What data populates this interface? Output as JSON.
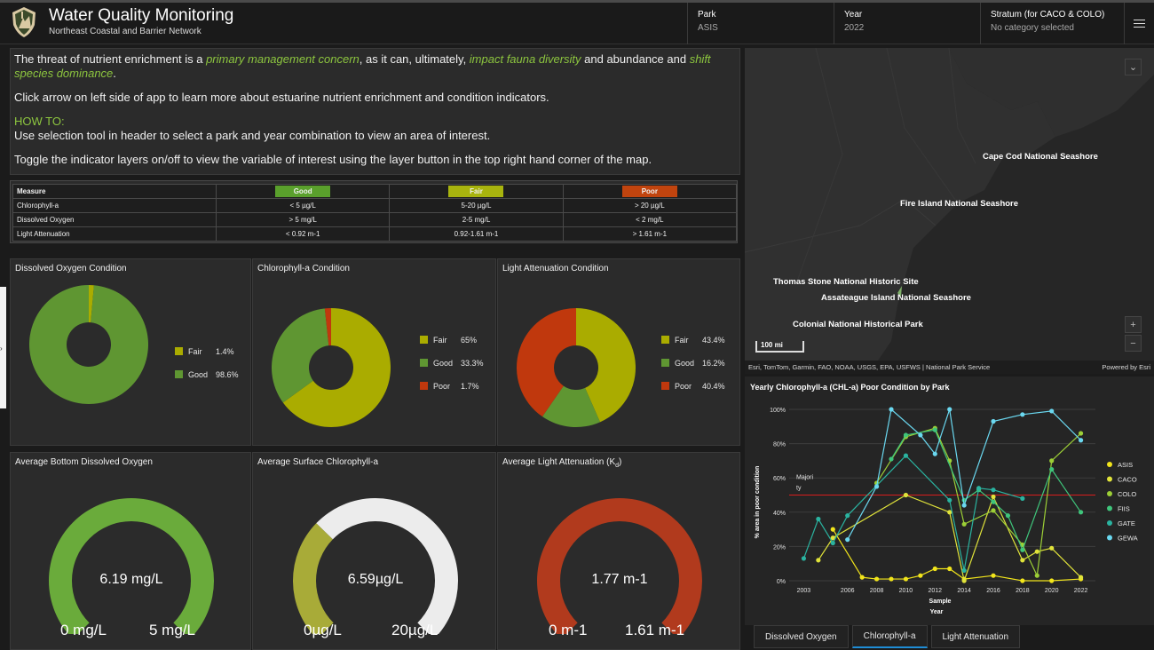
{
  "header": {
    "title": "Water Quality Monitoring",
    "subtitle": "Northeast Coastal and Barrier Network",
    "park_label": "Park",
    "park_value": "ASIS",
    "year_label": "Year",
    "year_value": "2022",
    "stratum_label": "Stratum (for CACO & COLO)",
    "stratum_value": "No category selected"
  },
  "intro": {
    "p1_a": "The threat of nutrient enrichment is a ",
    "p1_hl1": "primary management concern",
    "p1_b": ", as it can, ultimately, ",
    "p1_hl2": "impact fauna diversity",
    "p1_c": " and abundance and ",
    "p1_hl3": "shift species dominance",
    "p1_d": ".",
    "p2": "Click arrow on left side of app to learn more about estuarine nutrient enrichment and condition indicators.",
    "howto_title": "HOW TO:",
    "howto_text": "Use selection tool in header to select a park and year combination to view an area of interest.",
    "p4": "Toggle the indicator layers on/off to view the variable of interest using the layer button in the top right hand corner of the map."
  },
  "thresholds": {
    "headers": [
      "Measure",
      "Good",
      "Fair",
      "Poor"
    ],
    "header_colors": [
      "",
      "#5aa02c",
      "#a8b40e",
      "#c1440e"
    ],
    "rows": [
      [
        "Chlorophyll-a",
        "< 5 µg/L",
        "5-20 µg/L",
        "> 20 µg/L"
      ],
      [
        "Dissolved Oxygen",
        "> 5 mg/L",
        "2-5 mg/L",
        "< 2 mg/L"
      ],
      [
        "Light Attenuation",
        "< 0.92 m-1",
        "0.92-1.61 m-1",
        "> 1.61 m-1"
      ]
    ]
  },
  "colors": {
    "good": "#5f9632",
    "fair": "#aaac00",
    "poor": "#c0380d",
    "do_gauge": "#6aab3b",
    "chl_gauge": "#a8ab38",
    "la_gauge": "#b13a1d"
  },
  "donuts": [
    {
      "title": "Dissolved Oxygen Condition",
      "slices": [
        {
          "name": "Fair",
          "pct": 1.4,
          "label": "1.4%"
        },
        {
          "name": "Good",
          "pct": 98.6,
          "label": "98.6%"
        }
      ]
    },
    {
      "title": "Chlorophyll-a Condition",
      "slices": [
        {
          "name": "Fair",
          "pct": 65,
          "label": "65%"
        },
        {
          "name": "Good",
          "pct": 33.3,
          "label": "33.3%"
        },
        {
          "name": "Poor",
          "pct": 1.7,
          "label": "1.7%"
        }
      ]
    },
    {
      "title": "Light Attenuation Condition",
      "slices": [
        {
          "name": "Fair",
          "pct": 43.4,
          "label": "43.4%"
        },
        {
          "name": "Good",
          "pct": 16.2,
          "label": "16.2%"
        },
        {
          "name": "Poor",
          "pct": 40.4,
          "label": "40.4%"
        }
      ]
    }
  ],
  "gauges": [
    {
      "title": "Average Bottom Dissolved Oxygen",
      "value_text": "6.19 mg/L",
      "min": "0 mg/L",
      "max": "5 mg/L",
      "fill": 1.0
    },
    {
      "title": "Average Surface Chlorophyll-a",
      "value_text": "6.59µg/L",
      "min": "0µg/L",
      "max": "20µg/L",
      "fill": 0.33
    },
    {
      "title": "Average Light Attenuation (Kd)",
      "value_text": "1.77 m-1",
      "min": "0 m-1",
      "max": "1.61 m-1",
      "fill": 1.0
    }
  ],
  "map": {
    "places": [
      "Cape Cod National Seashore",
      "Fire Island National Seashore",
      "Thomas Stone National Historic Site",
      "Assateague Island National Seashore",
      "Colonial National Historical Park"
    ],
    "scale": "100 mi",
    "attribution": "Esri, TomTom, Garmin, FAO, NOAA, USGS, EPA, USFWS | National Park Service",
    "powered": "Powered by Esri"
  },
  "chart_data": {
    "type": "line",
    "title": "Yearly Chlorophyll-a (CHL-a) Poor Condition by Park",
    "xlabel": "Sample Year",
    "ylabel": "% area in poor condition",
    "xlim": [
      2002,
      2023
    ],
    "ylim": [
      0,
      100
    ],
    "x_ticks": [
      "2003",
      "2006",
      "2008",
      "2010",
      "2012",
      "2014",
      "2016",
      "2018",
      "2020",
      "2022"
    ],
    "y_ticks": [
      "0%",
      "20%",
      "40%",
      "60%",
      "80%",
      "100%"
    ],
    "reference_line": {
      "value": 50,
      "label": "Majority",
      "color": "#d91c1c"
    },
    "series": [
      {
        "name": "ASIS",
        "color": "#f2e51b",
        "x": [
          2005,
          2007,
          2008,
          2009,
          2010,
          2011,
          2012,
          2013,
          2014,
          2016,
          2018,
          2020,
          2022
        ],
        "y": [
          30,
          2,
          1,
          1,
          1,
          3,
          7,
          7,
          1,
          3,
          0,
          0,
          1
        ]
      },
      {
        "name": "CACO",
        "color": "#e0e33a",
        "x": [
          2004,
          2005,
          2010,
          2013,
          2014,
          2016,
          2018,
          2019,
          2020,
          2022
        ],
        "y": [
          12,
          25,
          50,
          40,
          0,
          49,
          12,
          17,
          19,
          2
        ]
      },
      {
        "name": "COLO",
        "color": "#9ccf36",
        "x": [
          2008,
          2010,
          2012,
          2013,
          2014,
          2016,
          2018,
          2019,
          2020,
          2022
        ],
        "y": [
          57,
          84,
          89,
          70,
          33,
          41,
          21,
          3,
          70,
          86
        ]
      },
      {
        "name": "FIIS",
        "color": "#3fc57b",
        "x": [
          2009,
          2010,
          2012,
          2014,
          2015,
          2016,
          2017,
          2018,
          2020,
          2022
        ],
        "y": [
          71,
          85,
          88,
          47,
          53,
          46,
          38,
          18,
          65,
          40
        ]
      },
      {
        "name": "GATE",
        "color": "#2ab3a0",
        "x": [
          2003,
          2004,
          2005,
          2006,
          2010,
          2013,
          2014,
          2015,
          2016,
          2018
        ],
        "y": [
          13,
          36,
          22,
          38,
          73,
          47,
          6,
          54,
          53,
          48
        ]
      },
      {
        "name": "GEWA",
        "color": "#6ad8f0",
        "x": [
          2006,
          2008,
          2009,
          2011,
          2012,
          2013,
          2014,
          2016,
          2018,
          2020,
          2022
        ],
        "y": [
          24,
          55,
          100,
          85,
          74,
          100,
          44,
          93,
          97,
          99,
          82
        ]
      }
    ]
  },
  "tabs": [
    "Dissolved Oxygen",
    "Chlorophyll-a",
    "Light Attenuation"
  ],
  "active_tab": "Chlorophyll-a"
}
